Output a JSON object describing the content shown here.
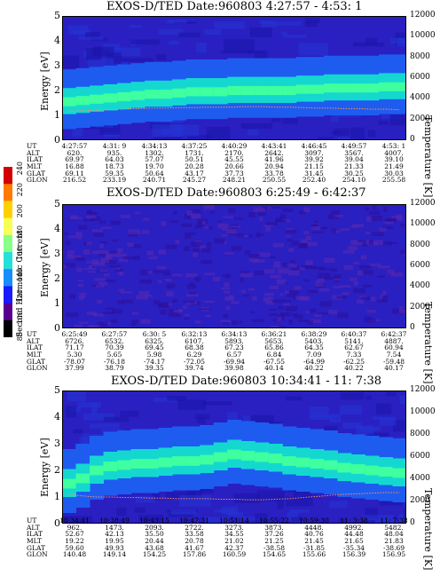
{
  "colorbar": {
    "label": "Second Harmonic Current",
    "ticks": [
      "240",
      "220",
      "200",
      "180",
      "160",
      "140",
      "120",
      "100",
      "80"
    ],
    "colors": [
      "#d40000",
      "#ff7a00",
      "#ffd000",
      "#f8ff55",
      "#88ff88",
      "#25e0d8",
      "#1a8cff",
      "#1a1aff",
      "#5a0090",
      "#000000"
    ]
  },
  "colors": {
    "background": "#2a1fc0",
    "band": "#14d8d0",
    "core": "#3fff9e",
    "temp": "#ff9060"
  },
  "chart_data": [
    {
      "type": "heatmap",
      "title": "EXOS-D/TED   Date:960803  4:27:57 - 4:53: 1",
      "ylabel": "Energy [eV]",
      "y2label": "Temperature [K]",
      "ylim": [
        0,
        5
      ],
      "y2lim": [
        0,
        12000
      ],
      "yticks": [
        "5",
        "4",
        "3",
        "2",
        "1",
        "0"
      ],
      "y2ticks": [
        "12000",
        "10000",
        "8000",
        "6000",
        "4000",
        "2000",
        "0"
      ],
      "band_center": [
        1.55,
        1.6,
        1.65,
        1.7,
        1.75,
        1.8,
        1.85,
        1.85,
        1.9,
        1.95,
        1.95,
        1.95,
        2.0,
        2.0,
        2.0,
        2.0,
        2.0,
        2.05,
        2.05,
        2.1,
        2.1,
        2.1,
        2.1,
        2.15,
        2.15
      ],
      "temperature": [
        2800,
        2850,
        2900,
        2950,
        3000,
        3050,
        3100,
        3100,
        3150,
        3150,
        3200,
        3200,
        3200,
        3250,
        3250,
        3200,
        3200,
        3150,
        3100,
        3100,
        3050,
        3050,
        3000,
        3000,
        2950
      ],
      "rows": [
        {
          "label": "UT",
          "values": [
            "4:27:57",
            "4:31: 9",
            "4:34:13",
            "4:37:25",
            "4:40:29",
            "4:43:41",
            "4:46:45",
            "4:49:57",
            "4:53: 1"
          ]
        },
        {
          "label": "ALT",
          "values": [
            "620.",
            "935.",
            "1302.",
            "1731.",
            "2170.",
            "2642.",
            "3097.",
            "3567.",
            "4007."
          ]
        },
        {
          "label": "ILAT",
          "values": [
            "69.97",
            "64.03",
            "57.07",
            "50.51",
            "45.55",
            "41.96",
            "39.92",
            "39.04",
            "39.10"
          ]
        },
        {
          "label": "MLT",
          "values": [
            "16.88",
            "18.73",
            "19.70",
            "20.28",
            "20.66",
            "20.94",
            "21.15",
            "21.33",
            "21.49"
          ]
        },
        {
          "label": "GLAT",
          "values": [
            "69.11",
            "59.35",
            "50.64",
            "43.17",
            "37.73",
            "33.78",
            "31.45",
            "30.25",
            "30.03"
          ]
        },
        {
          "label": "GLON",
          "values": [
            "216.52",
            "233.19",
            "240.71",
            "245.27",
            "248.21",
            "250.55",
            "252.40",
            "254.10",
            "255.58"
          ]
        }
      ]
    },
    {
      "type": "heatmap",
      "title": "EXOS-D/TED   Date:960803  6:25:49 - 6:42:37",
      "ylabel": "Energy [eV]",
      "y2label": "Temperature [K]",
      "ylim": [
        0,
        5
      ],
      "y2lim": [
        0,
        12000
      ],
      "yticks": [
        "5",
        "4",
        "3",
        "2",
        "1",
        "0"
      ],
      "y2ticks": [
        "12000",
        "10000",
        "8000",
        "6000",
        "4000",
        "2000",
        "0"
      ],
      "band_center": [],
      "temperature": [],
      "rows": [
        {
          "label": "UT",
          "values": [
            "6:25:49",
            "6:27:57",
            "6:30: 5",
            "6:32:13",
            "6:34:13",
            "6:36:21",
            "6:38:29",
            "6:40:37",
            "6:42:37"
          ]
        },
        {
          "label": "ALT",
          "values": [
            "6726.",
            "6532.",
            "6325.",
            "6107.",
            "5893.",
            "5653.",
            "5403.",
            "5141.",
            "4887."
          ]
        },
        {
          "label": "ILAT",
          "values": [
            "71.17",
            "70.39",
            "69.45",
            "68.38",
            "67.23",
            "65.86",
            "64.35",
            "62.67",
            "60.94"
          ]
        },
        {
          "label": "MLT",
          "values": [
            "5.30",
            "5.65",
            "5.98",
            "6.29",
            "6.57",
            "6.84",
            "7.09",
            "7.33",
            "7.54"
          ]
        },
        {
          "label": "GLAT",
          "values": [
            "-78.07",
            "-76.18",
            "-74.17",
            "-72.05",
            "-69.94",
            "-67.55",
            "-64.99",
            "-62.25",
            "-59.48"
          ]
        },
        {
          "label": "GLON",
          "values": [
            "37.99",
            "38.79",
            "39.35",
            "39.74",
            "39.98",
            "40.14",
            "40.22",
            "40.22",
            "40.17"
          ]
        }
      ]
    },
    {
      "type": "heatmap",
      "title": "EXOS-D/TED   Date:960803  10:34:41 - 11: 7:38",
      "ylabel": "Energy [eV]",
      "y2label": "Temperature [K]",
      "ylim": [
        0,
        5
      ],
      "y2lim": [
        0,
        12000
      ],
      "yticks": [
        "5",
        "4",
        "3",
        "2",
        "1",
        "0"
      ],
      "y2ticks": [
        "12000",
        "10000",
        "8000",
        "6000",
        "4000",
        "2000",
        "0"
      ],
      "band_center": [
        1.5,
        1.7,
        2.0,
        2.15,
        2.2,
        2.25,
        2.25,
        2.3,
        2.35,
        2.35,
        2.4,
        2.5,
        2.6,
        2.55,
        2.5,
        2.45,
        2.35,
        2.3,
        2.25,
        2.2,
        2.1,
        2.05,
        2.0,
        1.95,
        1.9
      ],
      "temperature": [
        2600,
        2500,
        2400,
        2400,
        2350,
        2350,
        2300,
        2300,
        2250,
        2250,
        2250,
        2200,
        2200,
        2150,
        2150,
        2200,
        2250,
        2350,
        2450,
        2550,
        2650,
        2700,
        2750,
        2800,
        2800
      ],
      "rows": [
        {
          "label": "UT",
          "values": [
            "10:34:41",
            "10:38:49",
            "10:43:15",
            "10:47:31",
            "10:51:14",
            "10:55:22",
            "10:59:30",
            "11: 3:38",
            "11: 7:38"
          ]
        },
        {
          "label": "ALT",
          "values": [
            "962.",
            "1473.",
            "2093.",
            "2722.",
            "3273.",
            "3873.",
            "4448.",
            "4992.",
            "5482."
          ]
        },
        {
          "label": "ILAT",
          "values": [
            "52.67",
            "42.13",
            "35.50",
            "33.58",
            "34.55",
            "37.26",
            "40.76",
            "44.48",
            "48.04"
          ]
        },
        {
          "label": "MLT",
          "values": [
            "19.22",
            "19.95",
            "20.44",
            "20.78",
            "21.02",
            "21.25",
            "21.45",
            "21.65",
            "21.83"
          ]
        },
        {
          "label": "GLAT",
          "values": [
            "59.60",
            "49.93",
            "43.68",
            "41.67",
            "42.37",
            "-38.58",
            "-31.85",
            "-35.34",
            "-38.69"
          ]
        },
        {
          "label": "GLON",
          "values": [
            "140.48",
            "149.14",
            "154.25",
            "157.86",
            "160.59",
            "154.65",
            "155.66",
            "156.39",
            "156.95"
          ]
        }
      ]
    }
  ]
}
